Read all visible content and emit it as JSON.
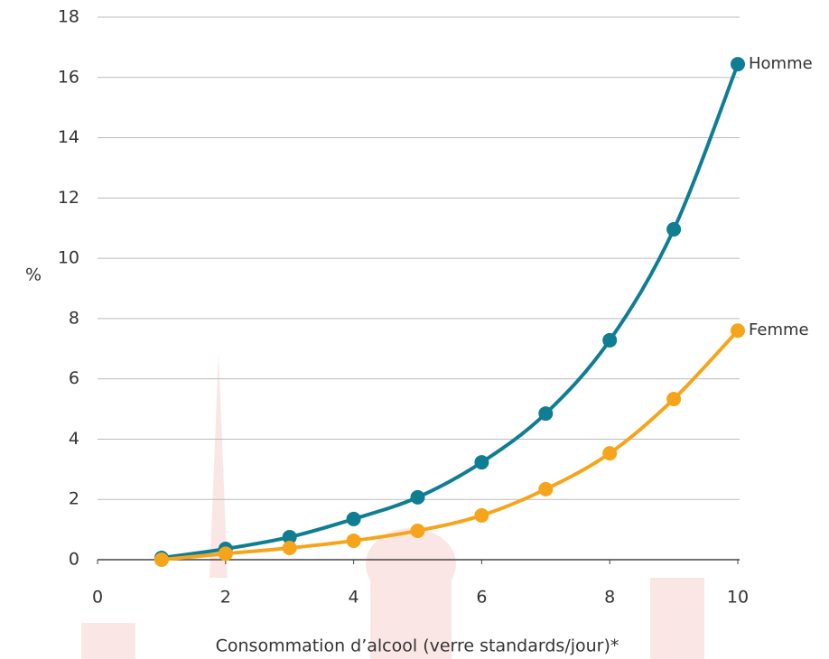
{
  "chart_data": {
    "type": "line",
    "x_label": "Consommation d’alcool (verre standards/jour)*",
    "y_label": "%",
    "x": [
      1,
      2,
      3,
      4,
      5,
      6,
      7,
      8,
      9,
      10
    ],
    "series": [
      {
        "name": "Homme",
        "color": "#0f7d92",
        "values": [
          0.06,
          0.36,
          0.75,
          1.35,
          2.07,
          3.23,
          4.85,
          7.28,
          10.96,
          16.44
        ]
      },
      {
        "name": "Femme",
        "color": "#f5a51c",
        "values": [
          0,
          0.2,
          0.39,
          0.63,
          0.96,
          1.47,
          2.34,
          3.53,
          5.33,
          7.6
        ]
      }
    ],
    "xlim": [
      0,
      10
    ],
    "xticks": [
      0,
      2,
      4,
      6,
      8,
      10
    ],
    "ylim": [
      0,
      18
    ],
    "yticks": [
      0,
      2,
      4,
      6,
      8,
      10,
      12,
      14,
      16,
      18
    ],
    "grid": true
  }
}
